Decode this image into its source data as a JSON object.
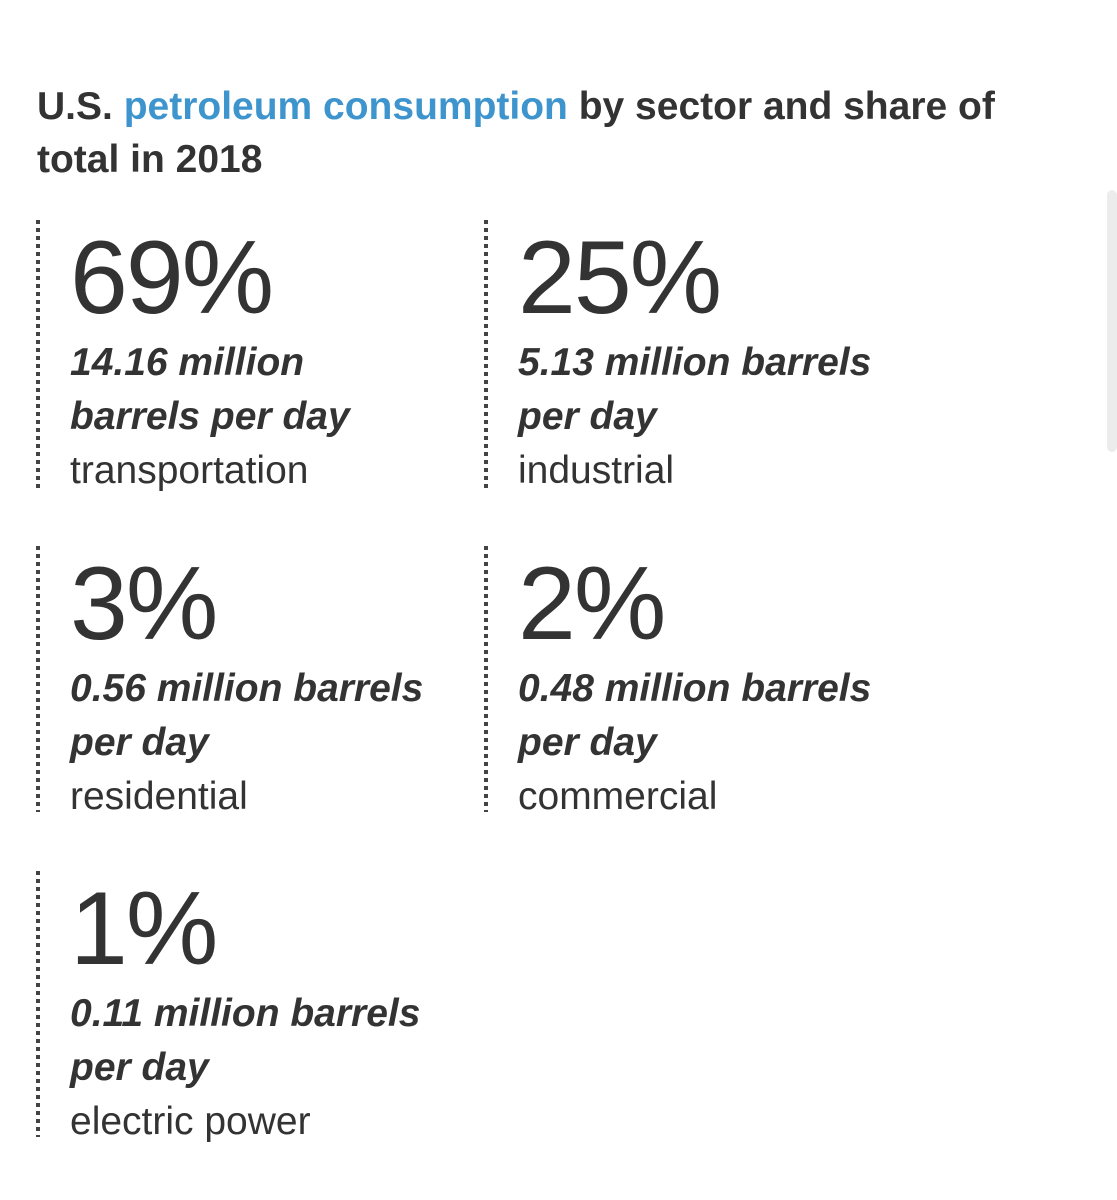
{
  "title": {
    "prefix": "U.S. ",
    "highlight": "petroleum consumption",
    "suffix": " by sector and share of total in 2018"
  },
  "colors": {
    "highlight": "#3e95cd",
    "text": "#333333"
  },
  "stats": [
    {
      "percent": "69%",
      "amount": "14.16 million barrels per day",
      "sector": "transportation"
    },
    {
      "percent": "25%",
      "amount": "5.13 million barrels per day",
      "sector": "industrial"
    },
    {
      "percent": "3%",
      "amount": "0.56 million barrels per day",
      "sector": "residential"
    },
    {
      "percent": "2%",
      "amount": "0.48 million barrels per day",
      "sector": "commercial"
    },
    {
      "percent": "1%",
      "amount": "0.11 million barrels per day",
      "sector": "electric power"
    }
  ]
}
